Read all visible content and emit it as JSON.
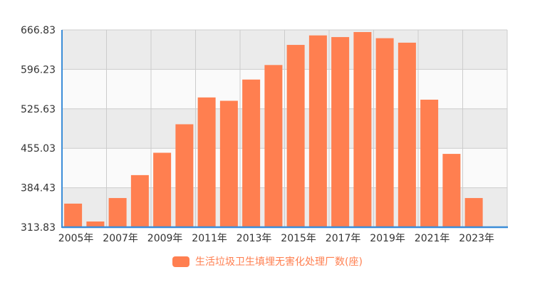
{
  "chart_data": {
    "type": "bar",
    "categories": [
      "2005年",
      "2006年",
      "2007年",
      "2008年",
      "2009年",
      "2010年",
      "2011年",
      "2012年",
      "2013年",
      "2014年",
      "2015年",
      "2016年",
      "2017年",
      "2018年",
      "2019年",
      "2020年",
      "2021年",
      "2022年",
      "2023年",
      "2024年"
    ],
    "series": [
      {
        "name": "生活垃圾卫生填埋无害化处理厂数(座)",
        "values": [
          356,
          324,
          366,
          407,
          447,
          498,
          546,
          540,
          578,
          604,
          640,
          657,
          654,
          663,
          652,
          644,
          542,
          445,
          366,
          313.83
        ]
      }
    ],
    "ylim": [
      313.83,
      666.83
    ],
    "yticks": [
      "313.83",
      "384.43",
      "455.03",
      "525.63",
      "596.23",
      "666.83"
    ],
    "xtick_labels": [
      "2005年",
      "2007年",
      "2009年",
      "2011年",
      "2013年",
      "2015年",
      "2017年",
      "2019年",
      "2021年",
      "2023年"
    ],
    "xlabel": "",
    "ylabel": "",
    "grid": true,
    "legend_position": "bottom-center",
    "colors": {
      "bar": "#FF7F50",
      "legend_text": "#FF7F50",
      "band_dark": "#EBEBEB",
      "band_light": "#FAFAFA",
      "grid": "#CCCCCC",
      "axis": "#3C8DD8"
    }
  }
}
